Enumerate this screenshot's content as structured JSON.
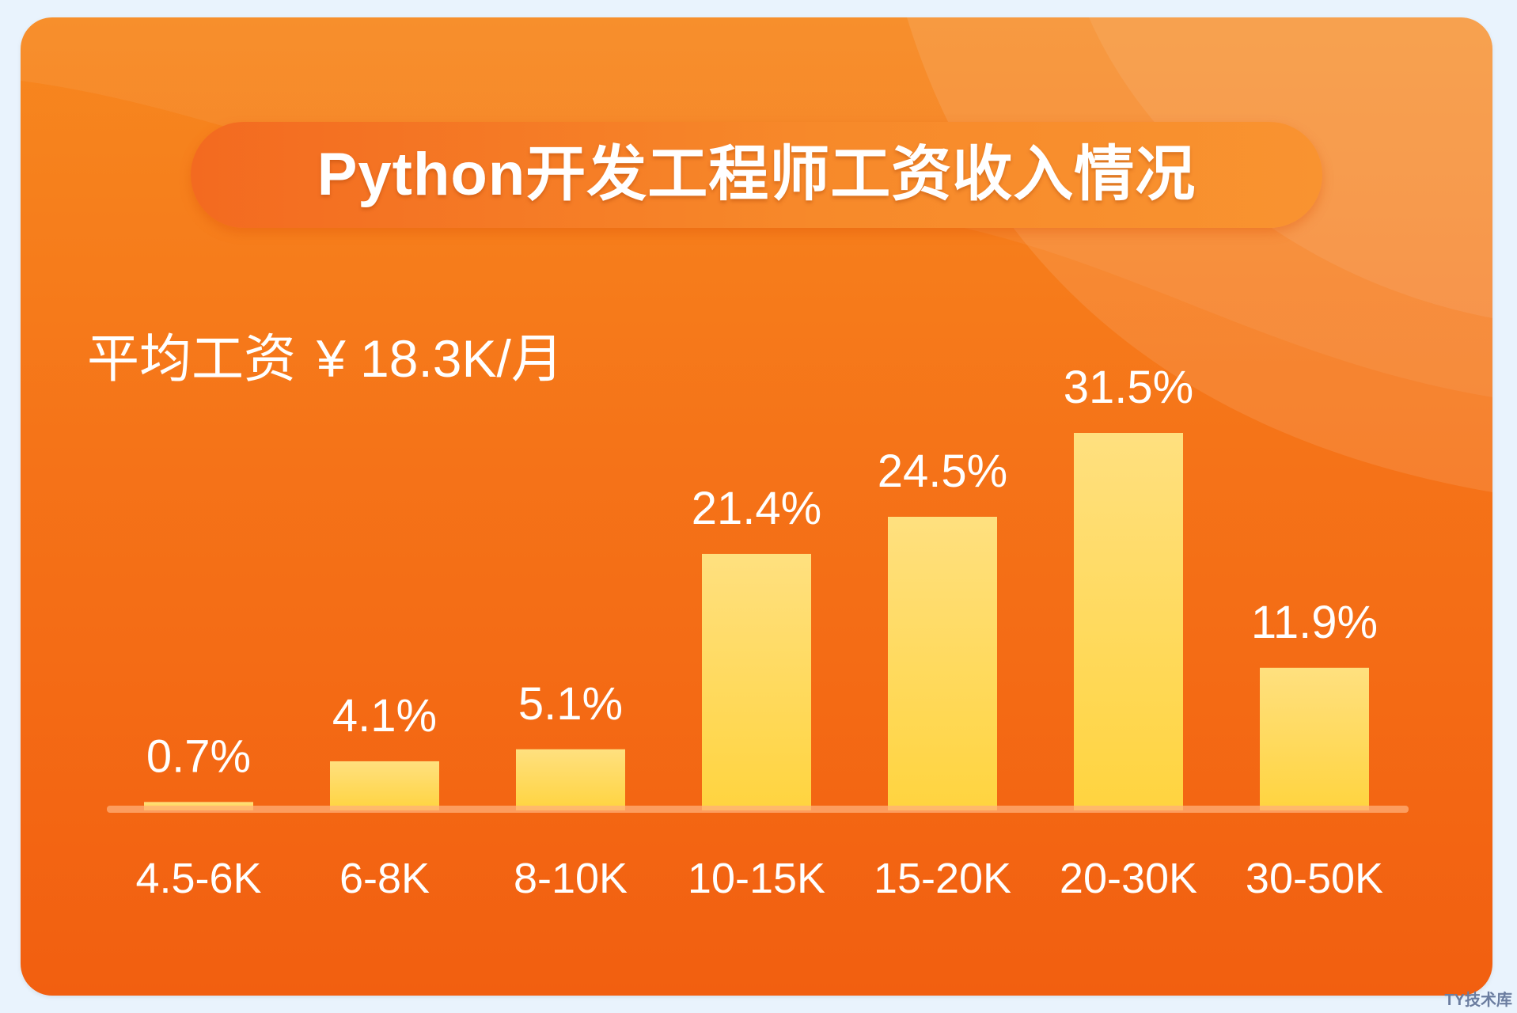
{
  "watermark": "TY技术库",
  "average": {
    "label": "平均工资",
    "value": "¥ 18.3K/月"
  },
  "colors": {
    "background": "#e9f3fd",
    "card_top": "#f7881f",
    "card_bottom": "#f25f10",
    "bar_top": "#ffe07f",
    "bar_bottom": "#ffd43f",
    "text": "#ffffff"
  },
  "chart_data": {
    "type": "bar",
    "title": "Python开发工程师工资收入情况",
    "categories": [
      "4.5-6K",
      "6-8K",
      "8-10K",
      "10-15K",
      "15-20K",
      "20-30K",
      "30-50K"
    ],
    "values": [
      0.7,
      4.1,
      5.1,
      21.4,
      24.5,
      31.5,
      11.9
    ],
    "data_labels": [
      "0.7%",
      "4.1%",
      "5.1%",
      "21.4%",
      "24.5%",
      "31.5%",
      "11.9%"
    ],
    "ylim": [
      0,
      31.5
    ],
    "grid": false,
    "legend": "none"
  }
}
